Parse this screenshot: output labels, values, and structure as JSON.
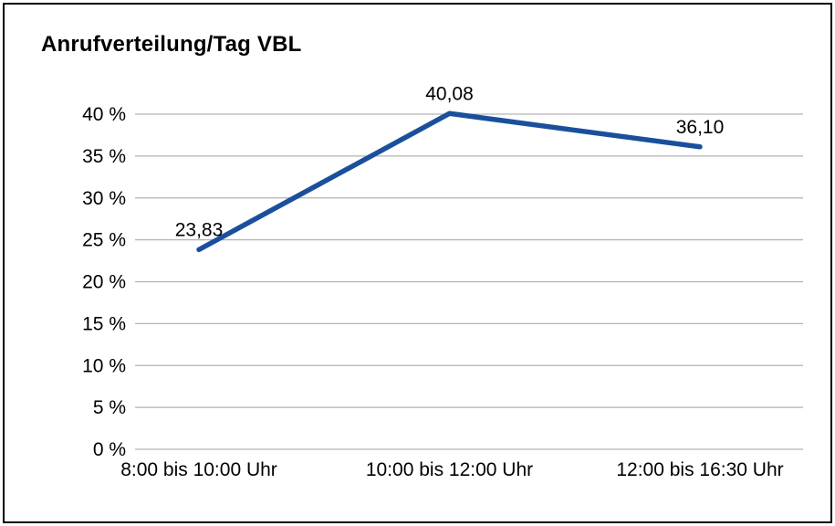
{
  "chart_data": {
    "type": "line",
    "title": "Anrufverteilung/Tag VBL",
    "categories": [
      "8:00 bis 10:00 Uhr",
      "10:00 bis 12:00 Uhr",
      "12:00 bis 16:30 Uhr"
    ],
    "values": [
      23.83,
      40.08,
      36.1
    ],
    "value_labels": [
      "23,83",
      "40,08",
      "36,10"
    ],
    "xlabel": "",
    "ylabel": "",
    "ylim": [
      0,
      40
    ],
    "ytick_step": 5,
    "yticks": [
      "0 %",
      "5 %",
      "10 %",
      "15 %",
      "20 %",
      "25 %",
      "30 %",
      "35 %",
      "40 %"
    ],
    "grid": true,
    "legend": "none",
    "line_color": "#1a4f9c",
    "grid_color": "#b3b3b3",
    "text_color": "#000000",
    "background_color": "#ffffff"
  }
}
